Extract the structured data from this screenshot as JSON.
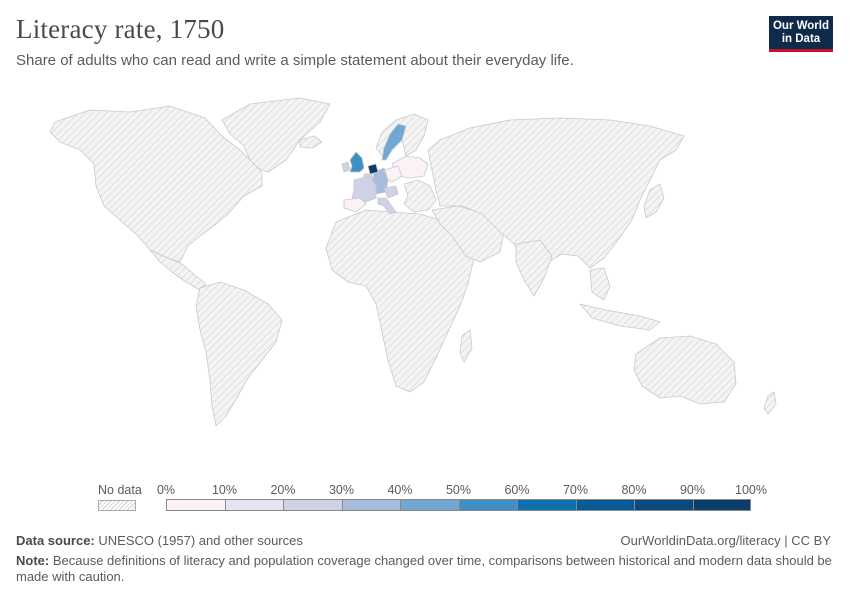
{
  "header": {
    "title": "Literacy rate, 1750",
    "subtitle": "Share of adults who can read and write a simple statement about their everyday life.",
    "logo_line1": "Our World",
    "logo_line2": "in Data"
  },
  "map": {
    "colors": {
      "no_data_fill": "#efefef",
      "no_data_hatch": "#d4d4d4",
      "border": "#c9c9c9"
    },
    "countries_with_data": [
      {
        "name": "United Kingdom",
        "bin": "50%–60%",
        "color": "#3e8fc4"
      },
      {
        "name": "Ireland",
        "bin": "20%–30%",
        "color": "#cfd1e6"
      },
      {
        "name": "Netherlands",
        "bin": "80%–90%",
        "color": "#0b3d6b"
      },
      {
        "name": "Belgium",
        "bin": "20%–30%",
        "color": "#cfd1e6"
      },
      {
        "name": "France",
        "bin": "20%–30%",
        "color": "#cfd1e6"
      },
      {
        "name": "Spain",
        "bin": "0%–10%",
        "color": "#fcf1f6"
      },
      {
        "name": "Italy",
        "bin": "20%–30%",
        "color": "#cfd1e6"
      },
      {
        "name": "Germany",
        "bin": "30%–40%",
        "color": "#a9bcdc"
      },
      {
        "name": "Austria",
        "bin": "20%–30%",
        "color": "#cfd1e6"
      },
      {
        "name": "Poland",
        "bin": "0%–10%",
        "color": "#fcf1f6"
      },
      {
        "name": "Russia (European)",
        "bin": "0%–10%",
        "color": "#fcf1f6"
      },
      {
        "name": "Sweden",
        "bin": "40%–50%",
        "color": "#72a7d1"
      }
    ]
  },
  "legend": {
    "no_data_label": "No data",
    "ticks": [
      "0%",
      "10%",
      "20%",
      "30%",
      "40%",
      "50%",
      "60%",
      "70%",
      "80%",
      "90%",
      "100%"
    ],
    "bins": [
      {
        "color": "#fcf1f6"
      },
      {
        "color": "#e7e5f2"
      },
      {
        "color": "#cfd1e6"
      },
      {
        "color": "#a9bcdc"
      },
      {
        "color": "#72a7d1"
      },
      {
        "color": "#3e8fc4"
      },
      {
        "color": "#0d6fae"
      },
      {
        "color": "#075a96"
      },
      {
        "color": "#084a80"
      },
      {
        "color": "#0b3d6b"
      }
    ]
  },
  "footer": {
    "source_label": "Data source:",
    "source_text": "UNESCO (1957) and other sources",
    "url_text": "OurWorldinData.org/literacy | CC BY",
    "note_label": "Note:",
    "note_text": "Because definitions of literacy and population coverage changed over time, comparisons between historical and modern data should be made with caution."
  }
}
